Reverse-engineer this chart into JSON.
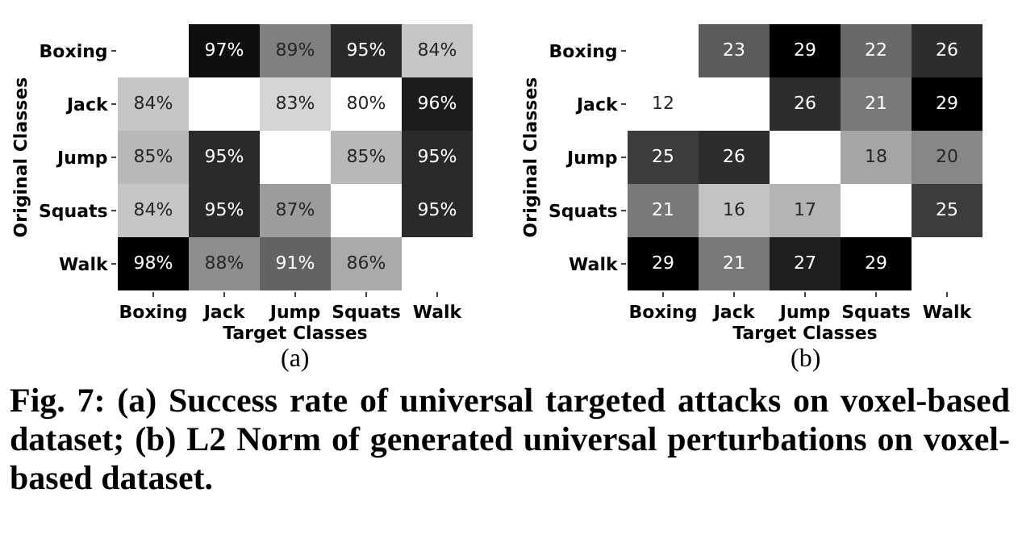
{
  "chart_data": [
    {
      "type": "heatmap",
      "xlabel": "Target Classes",
      "ylabel": "Original Classes",
      "categories": [
        "Boxing",
        "Jack",
        "Jump",
        "Squats",
        "Walk"
      ],
      "y_categories": [
        "Boxing",
        "Jack",
        "Jump",
        "Squats",
        "Walk"
      ],
      "cells": [
        [
          null,
          97,
          89,
          95,
          84
        ],
        [
          84,
          null,
          83,
          80,
          96
        ],
        [
          85,
          95,
          null,
          85,
          95
        ],
        [
          84,
          95,
          87,
          null,
          95
        ],
        [
          98,
          88,
          91,
          86,
          null
        ]
      ],
      "cell_labels": [
        [
          null,
          "97%",
          "89%",
          "95%",
          "84%"
        ],
        [
          "84%",
          null,
          "83%",
          "80%",
          "96%"
        ],
        [
          "85%",
          "95%",
          null,
          "85%",
          "95%"
        ],
        [
          "84%",
          "95%",
          "87%",
          null,
          "95%"
        ],
        [
          "98%",
          "88%",
          "91%",
          "86%",
          null
        ]
      ],
      "annotations": [
        "(a)",
        "Fig. 7: (a) Success rate of universal targeted attacks on voxel-based dataset; (b) L2 Norm of generated universal perturbations on voxel-based dataset."
      ]
    },
    {
      "type": "heatmap",
      "xlabel": "Target Classes",
      "ylabel": "Original Classes",
      "categories": [
        "Boxing",
        "Jack",
        "Jump",
        "Squats",
        "Walk"
      ],
      "y_categories": [
        "Boxing",
        "Jack",
        "Jump",
        "Squats",
        "Walk"
      ],
      "cells": [
        [
          null,
          23,
          29,
          22,
          26
        ],
        [
          12,
          null,
          26,
          21,
          29
        ],
        [
          25,
          26,
          null,
          18,
          20
        ],
        [
          21,
          16,
          17,
          null,
          25
        ],
        [
          29,
          21,
          27,
          29,
          null
        ]
      ],
      "data_labels": true,
      "annotations": [
        "(b)"
      ]
    }
  ]
}
